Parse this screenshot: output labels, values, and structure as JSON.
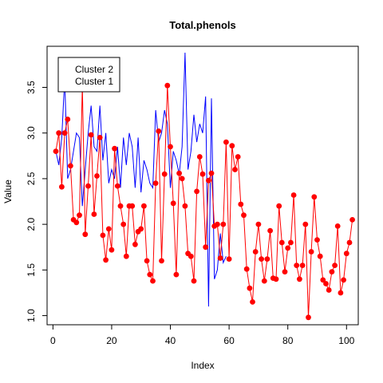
{
  "chart_data": {
    "type": "line",
    "title": "Total.phenols",
    "xlabel": "Index",
    "ylabel": "Value",
    "xlim": [
      -2,
      104
    ],
    "ylim": [
      0.9,
      3.95
    ],
    "xticks": [
      0,
      20,
      40,
      60,
      80,
      100
    ],
    "yticks": [
      1.0,
      1.5,
      2.0,
      2.5,
      3.0,
      3.5
    ],
    "grid": false,
    "legend_position": "top-left",
    "legend_entries": [
      "Cluster 2",
      "Cluster 1"
    ],
    "colors": {
      "cluster1": "#ff0000",
      "cluster2": "#0000ff"
    },
    "series": [
      {
        "name": "Cluster 1",
        "color": "#ff0000",
        "markers": true,
        "x": [
          1,
          2,
          3,
          4,
          5,
          6,
          7,
          8,
          9,
          10,
          11,
          12,
          13,
          14,
          15,
          16,
          17,
          18,
          19,
          20,
          21,
          22,
          23,
          24,
          25,
          26,
          27,
          28,
          29,
          30,
          31,
          32,
          33,
          34,
          35,
          36,
          37,
          38,
          39,
          40,
          41,
          42,
          43,
          44,
          45,
          46,
          47,
          48,
          49,
          50,
          51,
          52,
          53,
          54,
          55,
          56,
          57,
          58,
          59,
          60,
          61,
          62,
          63,
          64,
          65,
          66,
          67,
          68,
          69,
          70,
          71,
          72,
          73,
          74,
          75,
          76,
          77,
          78,
          79,
          80,
          81,
          82,
          83,
          84,
          85,
          86,
          87,
          88,
          89,
          90,
          91,
          92,
          93,
          94,
          95,
          96,
          97,
          98,
          99,
          100,
          101,
          102
        ],
        "y": [
          2.8,
          3.0,
          2.41,
          3.0,
          3.15,
          2.64,
          2.05,
          2.02,
          2.1,
          3.52,
          1.89,
          2.42,
          2.98,
          2.11,
          2.53,
          2.95,
          1.88,
          1.61,
          1.95,
          1.72,
          2.83,
          2.42,
          2.2,
          2.0,
          1.65,
          2.2,
          2.2,
          1.78,
          1.92,
          1.95,
          2.2,
          1.6,
          1.45,
          1.38,
          2.45,
          3.02,
          1.6,
          2.55,
          3.52,
          2.85,
          2.23,
          1.45,
          2.56,
          2.5,
          2.2,
          1.68,
          1.65,
          1.38,
          2.36,
          2.74,
          2.55,
          1.75,
          2.48,
          2.56,
          1.98,
          2.0,
          1.63,
          2.0,
          2.9,
          1.62,
          2.86,
          2.6,
          2.74,
          2.22,
          2.1,
          1.51,
          1.3,
          1.15,
          1.7,
          2.0,
          1.62,
          1.38,
          1.62,
          1.93,
          1.41,
          1.4,
          2.2,
          1.8,
          1.48,
          1.74,
          1.8,
          2.32,
          1.55,
          1.4,
          1.55,
          2.0,
          0.98,
          1.7,
          2.3,
          1.83,
          1.65,
          1.39,
          1.35,
          1.28,
          1.48,
          1.55,
          1.98,
          1.25,
          1.39,
          1.68,
          1.8,
          2.05
        ]
      },
      {
        "name": "Cluster 2",
        "color": "#0000ff",
        "markers": false,
        "x": [
          1,
          2,
          3,
          4,
          5,
          6,
          7,
          8,
          9,
          10,
          11,
          12,
          13,
          14,
          15,
          16,
          17,
          18,
          19,
          20,
          21,
          22,
          23,
          24,
          25,
          26,
          27,
          28,
          29,
          30,
          31,
          32,
          33,
          34,
          35,
          36,
          37,
          38,
          39,
          40,
          41,
          42,
          43,
          44,
          45,
          46,
          47,
          48,
          49,
          50,
          51,
          52,
          53,
          54,
          55,
          56,
          57,
          58,
          59
        ],
        "y": [
          2.8,
          2.65,
          2.95,
          3.6,
          2.5,
          2.6,
          2.8,
          3.0,
          2.95,
          2.2,
          2.6,
          3.0,
          3.3,
          2.85,
          2.8,
          3.3,
          2.7,
          3.0,
          2.45,
          2.6,
          2.5,
          2.85,
          2.4,
          2.95,
          2.65,
          3.0,
          2.85,
          2.4,
          2.95,
          2.35,
          2.7,
          2.6,
          2.45,
          2.4,
          3.25,
          2.9,
          3.0,
          3.25,
          3.1,
          2.4,
          2.8,
          2.7,
          2.55,
          2.85,
          3.88,
          2.6,
          2.8,
          3.2,
          2.9,
          3.1,
          3.0,
          3.4,
          1.1,
          3.38,
          1.4,
          1.5,
          1.9,
          1.58,
          1.65
        ]
      }
    ]
  }
}
